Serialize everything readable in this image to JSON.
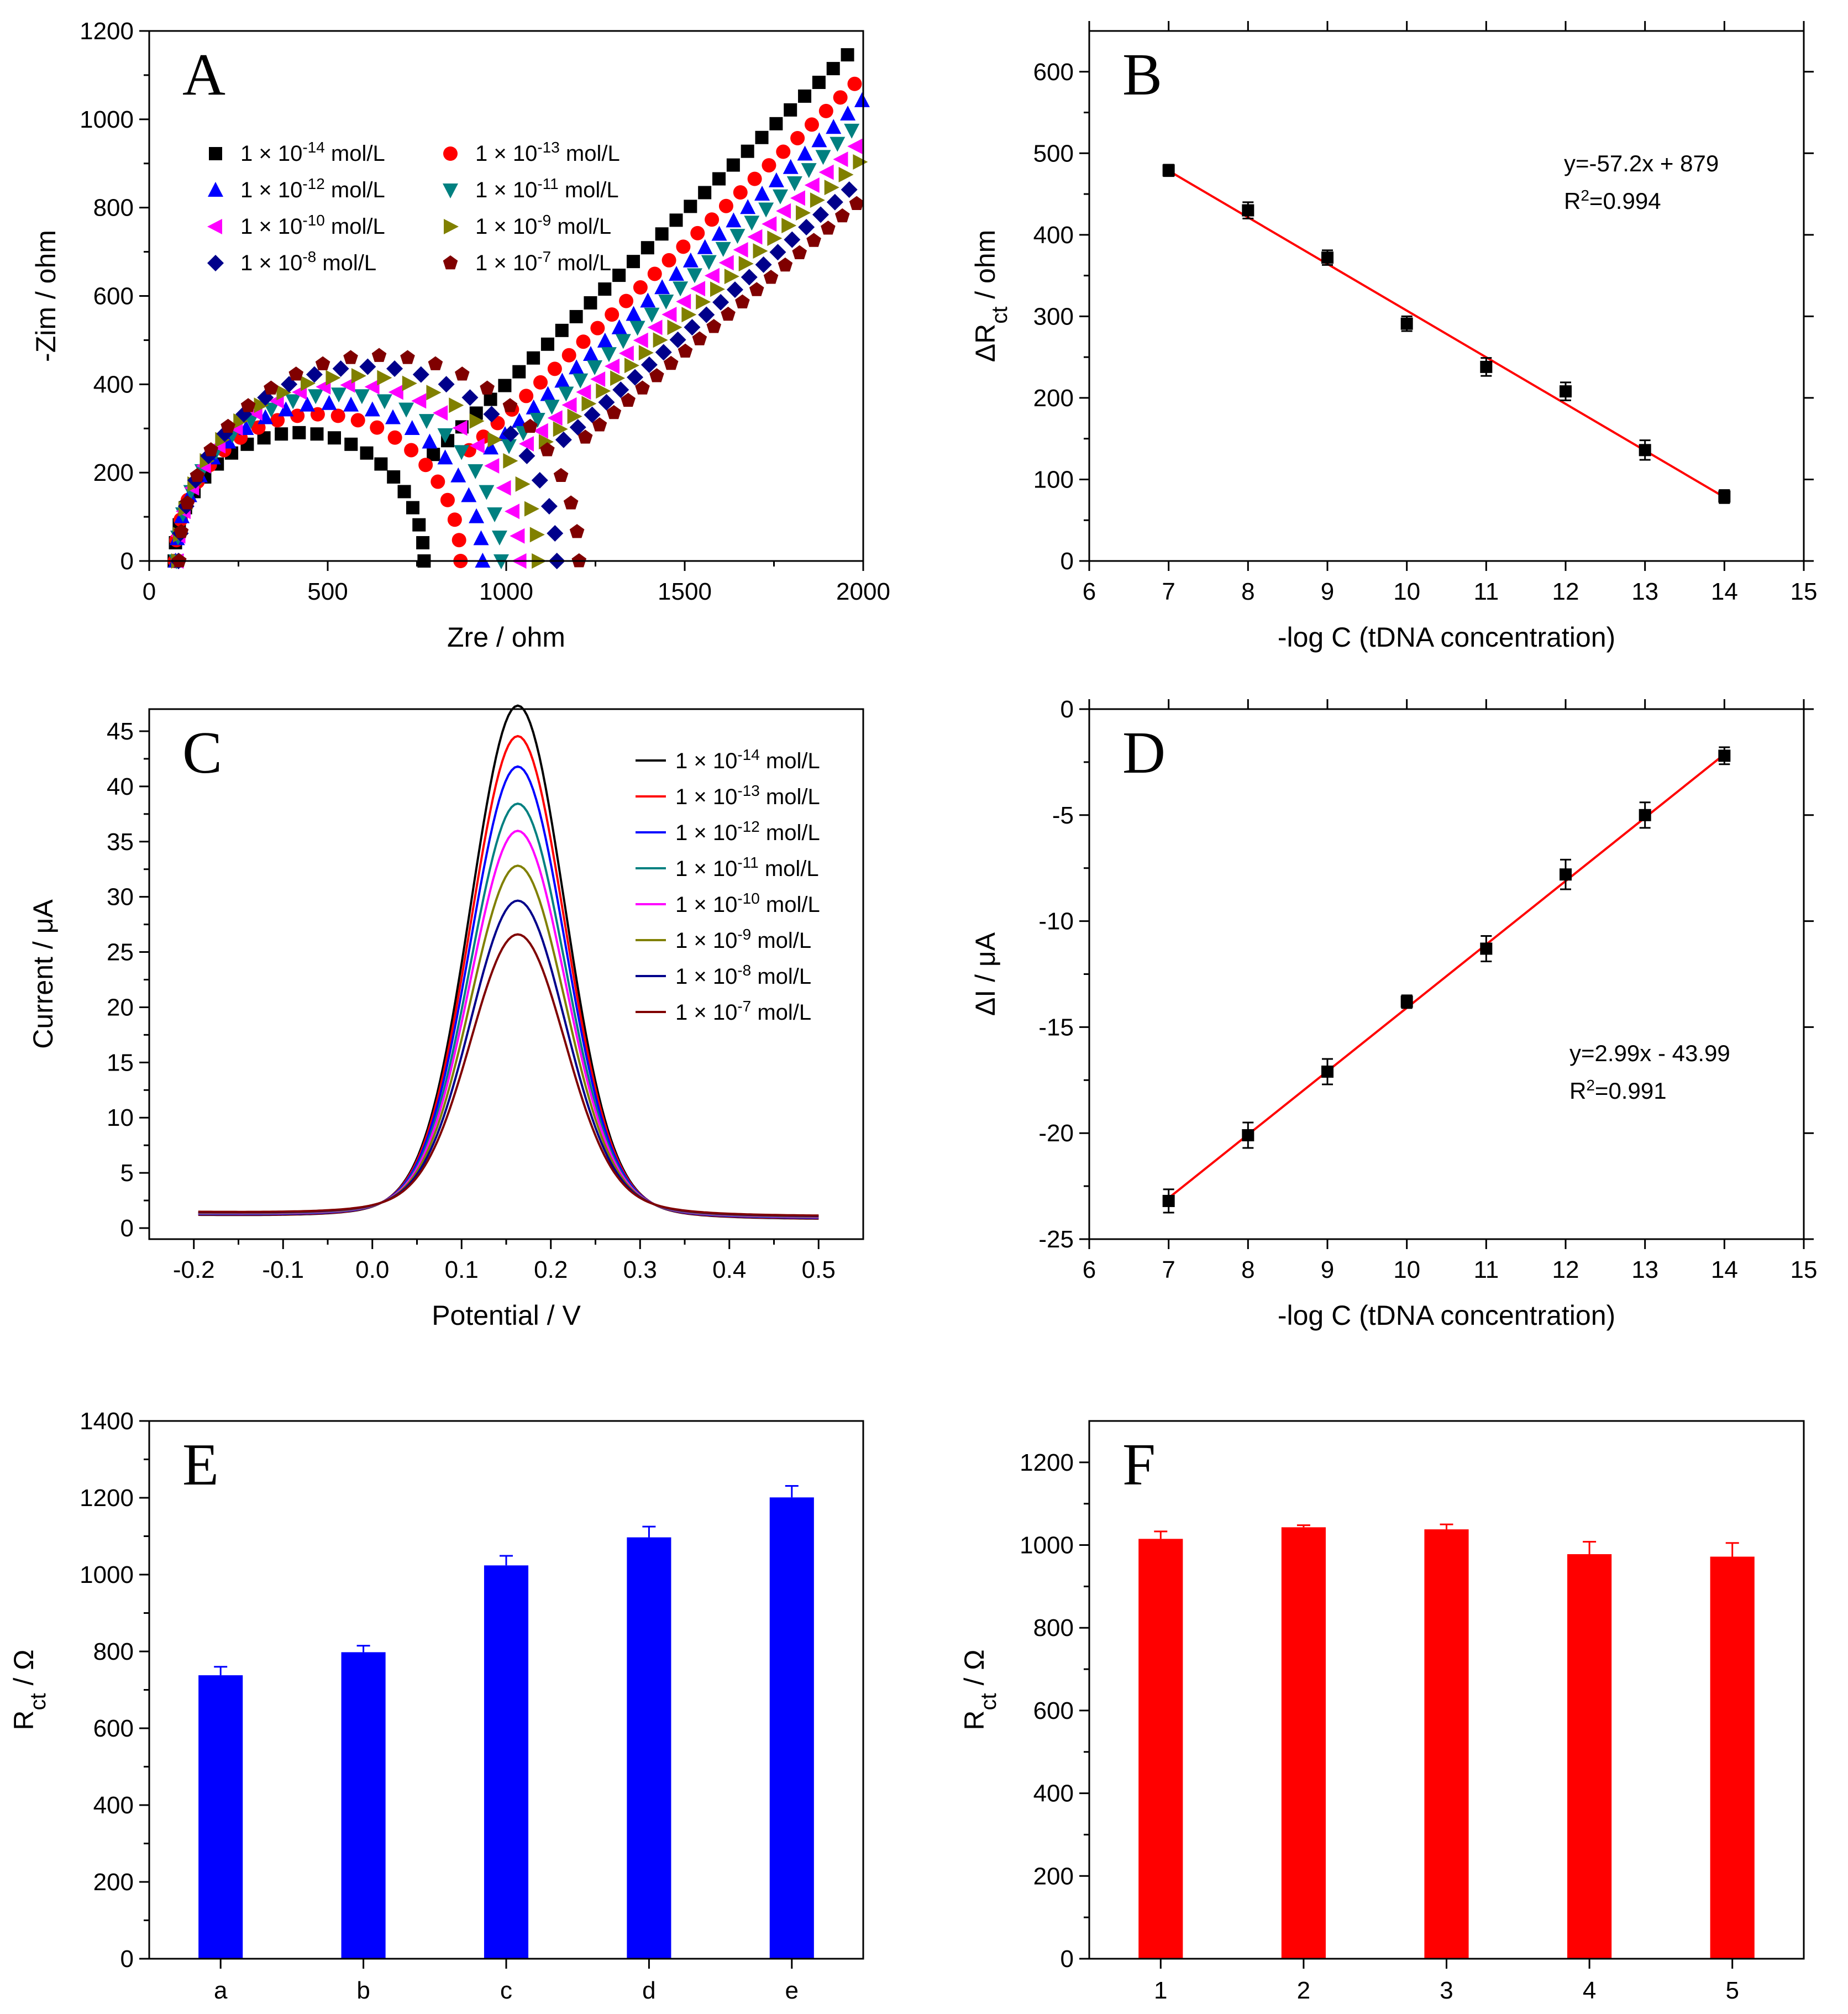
{
  "chart_data": [
    {
      "panel": "A",
      "type": "scatter",
      "xlabel": "Zre / ohm",
      "ylabel": "-Zim / ohm",
      "xlim": [
        0,
        2000
      ],
      "ylim": [
        0,
        1200
      ],
      "xticks": [
        0,
        500,
        1000,
        1500,
        2000
      ],
      "yticks": [
        0,
        200,
        400,
        600,
        800,
        1000,
        1200
      ],
      "legend_unit": "mol/L",
      "series": [
        {
          "name": "1 × 10^-14 mol/L",
          "coef": "1 × 10",
          "exp": "-14",
          "marker": "square",
          "color": "#000000",
          "R0": 70,
          "Rct": 700,
          "D": 0.011,
          "tail": 1700
        },
        {
          "name": "1 × 10^-13 mol/L",
          "coef": "1 × 10",
          "exp": "-13",
          "marker": "circle",
          "color": "#ff0000",
          "R0": 72,
          "Rct": 800,
          "D": 0.0118,
          "tail": 1660
        },
        {
          "name": "1 × 10^-12 mol/L",
          "coef": "1 × 10",
          "exp": "-12",
          "marker": "triangle-up",
          "color": "#0000ff",
          "R0": 74,
          "Rct": 860,
          "D": 0.0126,
          "tail": 1620
        },
        {
          "name": "1 × 10^-11 mol/L",
          "coef": "1 × 10",
          "exp": "-11",
          "marker": "triangle-down",
          "color": "#008080",
          "R0": 76,
          "Rct": 910,
          "D": 0.0134,
          "tail": 1580
        },
        {
          "name": "1 × 10^-10 mol/L",
          "coef": "1 × 10",
          "exp": "-10",
          "marker": "triangle-left",
          "color": "#ff00ff",
          "R0": 78,
          "Rct": 960,
          "D": 0.0142,
          "tail": 1540
        },
        {
          "name": "1 × 10^-9 mol/L",
          "coef": "1 × 10",
          "exp": "-9",
          "marker": "triangle-right",
          "color": "#808000",
          "R0": 80,
          "Rct": 1010,
          "D": 0.015,
          "tail": 1500
        },
        {
          "name": "1 × 10^-8 mol/L",
          "coef": "1 × 10",
          "exp": "-8",
          "marker": "diamond",
          "color": "#00008b",
          "R0": 82,
          "Rct": 1060,
          "D": 0.0158,
          "tail": 1460
        },
        {
          "name": "1 × 10^-7 mol/L",
          "coef": "1 × 10",
          "exp": "-7",
          "marker": "pentagon",
          "color": "#800000",
          "R0": 84,
          "Rct": 1120,
          "D": 0.0166,
          "tail": 1420
        }
      ]
    },
    {
      "panel": "B",
      "type": "scatter",
      "xlabel": "-log C (tDNA concentration)",
      "ylabel_main": "ΔR",
      "ylabel_sub": "ct",
      "ylabel_tail": " / ohm",
      "xlim": [
        6,
        15
      ],
      "ylim": [
        0,
        650
      ],
      "xticks": [
        6,
        7,
        8,
        9,
        10,
        11,
        12,
        13,
        14,
        15
      ],
      "yticks": [
        0,
        100,
        200,
        300,
        400,
        500,
        600
      ],
      "x": [
        7,
        8,
        9,
        10,
        11,
        12,
        13,
        14
      ],
      "y": [
        479,
        430,
        372,
        291,
        238,
        208,
        136,
        79
      ],
      "error": [
        7,
        10,
        9,
        9,
        11,
        11,
        12,
        8
      ],
      "fit": {
        "slope": -57.2,
        "intercept": 879,
        "x_range": [
          7,
          14
        ],
        "color": "#ff0000"
      },
      "equation": "y=-57.2x + 879",
      "r2_prefix": "R",
      "r2_sup": "2",
      "r2_value": "=0.994"
    },
    {
      "panel": "C",
      "type": "line",
      "xlabel": "Potential / V",
      "ylabel": "Current / μA",
      "xlim": [
        -0.25,
        0.55
      ],
      "ylim": [
        -1,
        47
      ],
      "xticks": [
        -0.2,
        -0.1,
        0.0,
        0.1,
        0.2,
        0.3,
        0.4,
        0.5
      ],
      "xtick_labels": [
        "-0.2",
        "-0.1",
        "0.0",
        "0.1",
        "0.2",
        "0.3",
        "0.4",
        "0.5"
      ],
      "yticks": [
        0,
        5,
        10,
        15,
        20,
        25,
        30,
        35,
        40,
        45
      ],
      "peak_potential": 0.163,
      "series": [
        {
          "name": "1 × 10^-14 mol/L",
          "coef": "1 × 10",
          "exp": "-14",
          "color": "#000000",
          "peak": 45.3
        },
        {
          "name": "1 × 10^-13 mol/L",
          "coef": "1 × 10",
          "exp": "-13",
          "color": "#ff0000",
          "peak": 42.5
        },
        {
          "name": "1 × 10^-12 mol/L",
          "coef": "1 × 10",
          "exp": "-12",
          "color": "#0000ff",
          "peak": 39.7
        },
        {
          "name": "1 × 10^-11 mol/L",
          "coef": "1 × 10",
          "exp": "-11",
          "color": "#008080",
          "peak": 36.3
        },
        {
          "name": "1 × 10^-10 mol/L",
          "coef": "1 × 10",
          "exp": "-10",
          "color": "#ff00ff",
          "peak": 33.8
        },
        {
          "name": "1 × 10^-9 mol/L",
          "coef": "1 × 10",
          "exp": "-9",
          "color": "#808000",
          "peak": 30.6
        },
        {
          "name": "1 × 10^-8 mol/L",
          "coef": "1 × 10",
          "exp": "-8",
          "color": "#00008b",
          "peak": 27.4
        },
        {
          "name": "1 × 10^-7 mol/L",
          "coef": "1 × 10",
          "exp": "-7",
          "color": "#800000",
          "peak": 24.3
        }
      ]
    },
    {
      "panel": "D",
      "type": "scatter",
      "xlabel": "-log C (tDNA concentration)",
      "ylabel": "ΔI / μA",
      "xlim": [
        6,
        15
      ],
      "ylim": [
        -25,
        0
      ],
      "xticks": [
        6,
        7,
        8,
        9,
        10,
        11,
        12,
        13,
        14,
        15
      ],
      "yticks": [
        -25,
        -20,
        -15,
        -10,
        -5,
        0
      ],
      "x": [
        7,
        8,
        9,
        10,
        11,
        12,
        13,
        14
      ],
      "y": [
        -23.2,
        -20.1,
        -17.1,
        -13.8,
        -11.3,
        -7.8,
        -5.0,
        -2.2
      ],
      "error": [
        0.55,
        0.6,
        0.6,
        0.3,
        0.6,
        0.7,
        0.6,
        0.4
      ],
      "fit": {
        "slope": 2.99,
        "intercept": -43.99,
        "x_range": [
          7,
          14
        ],
        "color": "#ff0000"
      },
      "equation": "y=2.99x - 43.99",
      "r2_prefix": "R",
      "r2_sup": "2",
      "r2_value": "=0.991"
    },
    {
      "panel": "E",
      "type": "bar",
      "categories": [
        "a",
        "b",
        "c",
        "d",
        "e"
      ],
      "values": [
        738,
        798,
        1024,
        1097,
        1201
      ],
      "error": [
        22,
        17,
        25,
        28,
        30
      ],
      "color": "#0000ff",
      "ylabel_main": "R",
      "ylabel_sub": "ct",
      "ylabel_tail": " / Ω",
      "ylim": [
        0,
        1400
      ],
      "yticks": [
        0,
        200,
        400,
        600,
        800,
        1000,
        1200,
        1400
      ]
    },
    {
      "panel": "F",
      "type": "bar",
      "categories": [
        "1",
        "2",
        "3",
        "4",
        "5"
      ],
      "values": [
        1015,
        1043,
        1038,
        978,
        972
      ],
      "error": [
        18,
        5,
        12,
        30,
        33
      ],
      "color": "#ff0000",
      "ylabel_main": "R",
      "ylabel_sub": "ct",
      "ylabel_tail": " / Ω",
      "ylim": [
        0,
        1300
      ],
      "yticks": [
        0,
        200,
        400,
        600,
        800,
        1000,
        1200
      ]
    }
  ]
}
